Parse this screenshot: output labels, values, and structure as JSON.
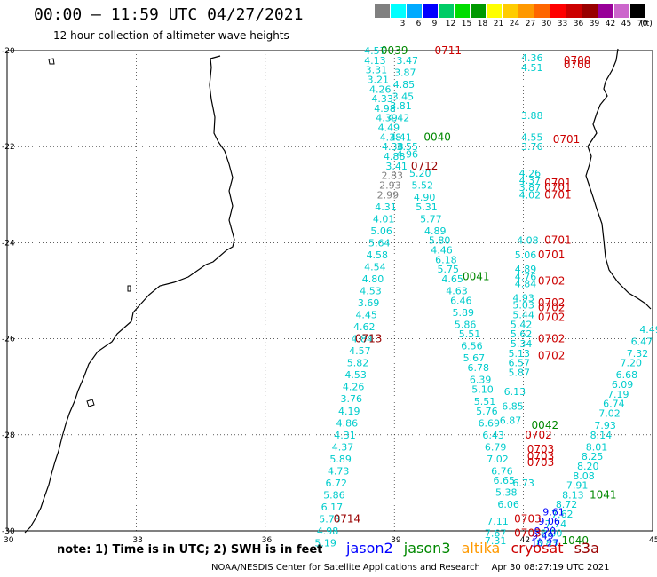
{
  "header": {
    "title": "00:00 – 11:59 UTC 04/27/2021",
    "subtitle": "12 hour collection of altimeter wave heights"
  },
  "color_scale": {
    "unit": "(ft)",
    "swatches": [
      {
        "label": "",
        "color": "#808080"
      },
      {
        "label": "3",
        "color": "#00ffff"
      },
      {
        "label": "6",
        "color": "#00aaff"
      },
      {
        "label": "9",
        "color": "#0000ff"
      },
      {
        "label": "12",
        "color": "#00cc66"
      },
      {
        "label": "15",
        "color": "#00dd00"
      },
      {
        "label": "18",
        "color": "#009900"
      },
      {
        "label": "21",
        "color": "#ffff00"
      },
      {
        "label": "24",
        "color": "#ffcc00"
      },
      {
        "label": "27",
        "color": "#ff9900"
      },
      {
        "label": "30",
        "color": "#ff6600"
      },
      {
        "label": "33",
        "color": "#ff0000"
      },
      {
        "label": "36",
        "color": "#cc0000"
      },
      {
        "label": "39",
        "color": "#990000"
      },
      {
        "label": "42",
        "color": "#990099"
      },
      {
        "label": "45",
        "color": "#cc66cc"
      },
      {
        "label": "70",
        "color": "#000000"
      }
    ]
  },
  "axes": {
    "lat_labels": [
      "-20",
      "-22",
      "-24",
      "-26",
      "-28",
      "-30"
    ],
    "lon_labels": [
      "30",
      "33",
      "36",
      "39",
      "42",
      "45"
    ]
  },
  "tracks": [
    {
      "name": "jason3 track west",
      "color": "#00cccc",
      "points": [
        {
          "lon": 38.55,
          "lat": -20.0,
          "v": "4.57"
        },
        {
          "lon": 38.55,
          "lat": -20.2,
          "v": "4.13"
        },
        {
          "lon": 38.58,
          "lat": -20.4,
          "v": "3.31"
        },
        {
          "lon": 38.62,
          "lat": -20.6,
          "v": "3.21"
        },
        {
          "lon": 38.67,
          "lat": -20.8,
          "v": "4.26"
        },
        {
          "lon": 38.72,
          "lat": -21.0,
          "v": "4.33"
        },
        {
          "lon": 38.78,
          "lat": -21.2,
          "v": "4.98"
        },
        {
          "lon": 38.82,
          "lat": -21.4,
          "v": "4.39"
        },
        {
          "lon": 38.87,
          "lat": -21.6,
          "v": "4.49"
        },
        {
          "lon": 38.91,
          "lat": -21.8,
          "v": "4.38"
        },
        {
          "lon": 38.96,
          "lat": -22.0,
          "v": "4.38"
        },
        {
          "lon": 39.0,
          "lat": -22.2,
          "v": "4.88"
        },
        {
          "lon": 39.05,
          "lat": -22.4,
          "v": "3.41"
        },
        {
          "lon": 38.95,
          "lat": -22.6,
          "v": "2.83",
          "c": "#808080"
        },
        {
          "lon": 38.9,
          "lat": -22.8,
          "v": "2.93",
          "c": "#808080"
        },
        {
          "lon": 38.85,
          "lat": -23.0,
          "v": "2.99",
          "c": "#808080"
        },
        {
          "lon": 38.8,
          "lat": -23.25,
          "v": "4.31"
        },
        {
          "lon": 38.75,
          "lat": -23.5,
          "v": "4.01"
        },
        {
          "lon": 38.7,
          "lat": -23.75,
          "v": "5.06"
        },
        {
          "lon": 38.65,
          "lat": -24.0,
          "v": "5.64"
        },
        {
          "lon": 38.6,
          "lat": -24.25,
          "v": "4.58"
        },
        {
          "lon": 38.55,
          "lat": -24.5,
          "v": "4.54"
        },
        {
          "lon": 38.5,
          "lat": -24.75,
          "v": "4.80"
        },
        {
          "lon": 38.45,
          "lat": -25.0,
          "v": "4.53"
        },
        {
          "lon": 38.4,
          "lat": -25.25,
          "v": "3.69"
        },
        {
          "lon": 38.35,
          "lat": -25.5,
          "v": "4.45"
        },
        {
          "lon": 38.3,
          "lat": -25.75,
          "v": "4.62"
        },
        {
          "lon": 38.25,
          "lat": -26.0,
          "v": "4.84"
        },
        {
          "lon": 38.2,
          "lat": -26.25,
          "v": "4.57"
        },
        {
          "lon": 38.15,
          "lat": -26.5,
          "v": "5.82"
        },
        {
          "lon": 38.1,
          "lat": -26.75,
          "v": "4.53"
        },
        {
          "lon": 38.05,
          "lat": -27.0,
          "v": "4.26"
        },
        {
          "lon": 38.0,
          "lat": -27.25,
          "v": "3.76"
        },
        {
          "lon": 37.95,
          "lat": -27.5,
          "v": "4.19"
        },
        {
          "lon": 37.9,
          "lat": -27.75,
          "v": "4.86"
        },
        {
          "lon": 37.85,
          "lat": -28.0,
          "v": "4.31"
        },
        {
          "lon": 37.8,
          "lat": -28.25,
          "v": "4.37"
        },
        {
          "lon": 37.75,
          "lat": -28.5,
          "v": "5.89"
        },
        {
          "lon": 37.7,
          "lat": -28.75,
          "v": "4.73"
        },
        {
          "lon": 37.65,
          "lat": -29.0,
          "v": "6.72"
        },
        {
          "lon": 37.6,
          "lat": -29.25,
          "v": "5.86"
        },
        {
          "lon": 37.55,
          "lat": -29.5,
          "v": "6.17"
        },
        {
          "lon": 37.5,
          "lat": -29.75,
          "v": "5.73"
        },
        {
          "lon": 37.45,
          "lat": -30.0,
          "v": "4.98"
        },
        {
          "lon": 37.4,
          "lat": -30.25,
          "v": "5.19"
        }
      ]
    },
    {
      "name": "jason3 track east",
      "color": "#00cccc",
      "points": [
        {
          "lon": 39.3,
          "lat": -20.2,
          "v": "3.47"
        },
        {
          "lon": 39.25,
          "lat": -20.45,
          "v": "3.87"
        },
        {
          "lon": 39.22,
          "lat": -20.7,
          "v": "4.85"
        },
        {
          "lon": 39.2,
          "lat": -20.95,
          "v": "3.45"
        },
        {
          "lon": 39.15,
          "lat": -21.15,
          "v": "3.81"
        },
        {
          "lon": 39.1,
          "lat": -21.4,
          "v": "4.42"
        },
        {
          "lon": 39.15,
          "lat": -21.8,
          "v": "4.41"
        },
        {
          "lon": 39.3,
          "lat": -22.0,
          "v": "3.55"
        },
        {
          "lon": 39.3,
          "lat": -22.15,
          "v": "4.96"
        },
        {
          "lon": 39.6,
          "lat": -22.55,
          "v": "5.20"
        },
        {
          "lon": 39.65,
          "lat": -22.8,
          "v": "5.52"
        },
        {
          "lon": 39.7,
          "lat": -23.05,
          "v": "4.90"
        },
        {
          "lon": 39.75,
          "lat": -23.25,
          "v": "5.31"
        },
        {
          "lon": 39.85,
          "lat": -23.5,
          "v": "5.77"
        },
        {
          "lon": 39.95,
          "lat": -23.75,
          "v": "4.89"
        },
        {
          "lon": 40.05,
          "lat": -23.95,
          "v": "5.80"
        },
        {
          "lon": 40.1,
          "lat": -24.15,
          "v": "4.46"
        },
        {
          "lon": 40.2,
          "lat": -24.35,
          "v": "6.18"
        },
        {
          "lon": 40.25,
          "lat": -24.55,
          "v": "5.75"
        },
        {
          "lon": 40.35,
          "lat": -24.75,
          "v": "4.65"
        },
        {
          "lon": 40.45,
          "lat": -25.0,
          "v": "4.63"
        },
        {
          "lon": 40.55,
          "lat": -25.2,
          "v": "6.46"
        },
        {
          "lon": 40.6,
          "lat": -25.45,
          "v": "5.89"
        },
        {
          "lon": 40.65,
          "lat": -25.7,
          "v": "5.86"
        },
        {
          "lon": 40.75,
          "lat": -25.9,
          "v": "5.51"
        },
        {
          "lon": 40.8,
          "lat": -26.15,
          "v": "6.56"
        },
        {
          "lon": 40.85,
          "lat": -26.4,
          "v": "5.67"
        },
        {
          "lon": 40.95,
          "lat": -26.6,
          "v": "6.78"
        },
        {
          "lon": 41.0,
          "lat": -26.85,
          "v": "6.39"
        },
        {
          "lon": 41.05,
          "lat": -27.05,
          "v": "5.10"
        },
        {
          "lon": 41.1,
          "lat": -27.3,
          "v": "5.51"
        },
        {
          "lon": 41.15,
          "lat": -27.5,
          "v": "5.76"
        },
        {
          "lon": 41.2,
          "lat": -27.75,
          "v": "6.69"
        },
        {
          "lon": 41.3,
          "lat": -28.0,
          "v": "6.43"
        },
        {
          "lon": 41.35,
          "lat": -28.25,
          "v": "6.79"
        },
        {
          "lon": 41.4,
          "lat": -28.5,
          "v": "7.02"
        },
        {
          "lon": 41.5,
          "lat": -28.75,
          "v": "6.76"
        },
        {
          "lon": 41.55,
          "lat": -28.95,
          "v": "6.65"
        },
        {
          "lon": 41.6,
          "lat": -29.2,
          "v": "5.38"
        },
        {
          "lon": 41.65,
          "lat": -29.45,
          "v": "6.06"
        }
      ]
    },
    {
      "name": "jason3 track south-east",
      "color": "#00cccc",
      "points": [
        {
          "lon": 44.95,
          "lat": -25.8,
          "v": "4.49"
        },
        {
          "lon": 44.75,
          "lat": -26.05,
          "v": "6.47"
        },
        {
          "lon": 44.65,
          "lat": -26.3,
          "v": "7.32"
        },
        {
          "lon": 44.5,
          "lat": -26.5,
          "v": "7.20"
        },
        {
          "lon": 44.4,
          "lat": -26.75,
          "v": "6.68"
        },
        {
          "lon": 44.3,
          "lat": -26.95,
          "v": "6.09"
        },
        {
          "lon": 44.2,
          "lat": -27.15,
          "v": "7.19"
        },
        {
          "lon": 44.1,
          "lat": -27.35,
          "v": "6.74"
        },
        {
          "lon": 44.0,
          "lat": -27.55,
          "v": "7.02"
        },
        {
          "lon": 43.9,
          "lat": -27.8,
          "v": "7.93"
        },
        {
          "lon": 43.8,
          "lat": -28.0,
          "v": "8.14"
        },
        {
          "lon": 43.7,
          "lat": -28.25,
          "v": "8.01"
        },
        {
          "lon": 43.6,
          "lat": -28.45,
          "v": "8.25"
        },
        {
          "lon": 43.5,
          "lat": -28.65,
          "v": "8.20"
        },
        {
          "lon": 43.4,
          "lat": -28.85,
          "v": "8.08"
        },
        {
          "lon": 43.25,
          "lat": -29.05,
          "v": "7.91"
        },
        {
          "lon": 43.15,
          "lat": -29.25,
          "v": "8.13"
        },
        {
          "lon": 43.0,
          "lat": -29.45,
          "v": "8.72"
        },
        {
          "lon": 42.9,
          "lat": -29.65,
          "v": "7.62"
        },
        {
          "lon": 42.75,
          "lat": -29.85,
          "v": "7.74"
        },
        {
          "lon": 42.65,
          "lat": -30.05,
          "v": "8.00"
        },
        {
          "lon": 42.55,
          "lat": -30.25,
          "v": "8.83"
        }
      ]
    },
    {
      "name": "cryosat track",
      "color": "#00cccc",
      "points": [
        {
          "lon": 42.2,
          "lat": -20.15,
          "v": "4.36"
        },
        {
          "lon": 42.2,
          "lat": -20.35,
          "v": "4.51"
        },
        {
          "lon": 42.2,
          "lat": -21.35,
          "v": "3.88"
        },
        {
          "lon": 42.2,
          "lat": -21.8,
          "v": "4.55"
        },
        {
          "lon": 42.2,
          "lat": -22.0,
          "v": "3.76"
        },
        {
          "lon": 42.15,
          "lat": -22.55,
          "v": "4.26"
        },
        {
          "lon": 42.15,
          "lat": -22.7,
          "v": "4.37"
        },
        {
          "lon": 42.15,
          "lat": -22.85,
          "v": "3.87"
        },
        {
          "lon": 42.15,
          "lat": -23.0,
          "v": "4.02"
        },
        {
          "lon": 42.1,
          "lat": -23.95,
          "v": "4.08"
        },
        {
          "lon": 42.05,
          "lat": -24.25,
          "v": "5.06"
        },
        {
          "lon": 42.05,
          "lat": -24.55,
          "v": "4.89"
        },
        {
          "lon": 42.05,
          "lat": -24.7,
          "v": "4.76"
        },
        {
          "lon": 42.05,
          "lat": -24.85,
          "v": "4.84"
        },
        {
          "lon": 42.0,
          "lat": -25.15,
          "v": "4.93"
        },
        {
          "lon": 42.0,
          "lat": -25.3,
          "v": "5.03"
        },
        {
          "lon": 42.0,
          "lat": -25.5,
          "v": "5.44"
        },
        {
          "lon": 41.95,
          "lat": -25.7,
          "v": "5.42"
        },
        {
          "lon": 41.95,
          "lat": -25.9,
          "v": "5.62"
        },
        {
          "lon": 41.95,
          "lat": -26.1,
          "v": "5.34"
        },
        {
          "lon": 41.9,
          "lat": -26.3,
          "v": "5.13"
        },
        {
          "lon": 41.9,
          "lat": -26.5,
          "v": "6.57"
        },
        {
          "lon": 41.9,
          "lat": -26.7,
          "v": "5.87"
        },
        {
          "lon": 41.8,
          "lat": -27.1,
          "v": "6.13"
        },
        {
          "lon": 41.75,
          "lat": -27.4,
          "v": "6.85"
        },
        {
          "lon": 41.7,
          "lat": -27.7,
          "v": "6.87"
        },
        {
          "lon": 42.0,
          "lat": -29.0,
          "v": "6.73"
        },
        {
          "lon": 41.4,
          "lat": -29.8,
          "v": "7.11"
        },
        {
          "lon": 41.35,
          "lat": -30.05,
          "v": "7.67"
        },
        {
          "lon": 41.35,
          "lat": -30.2,
          "v": "7.31"
        }
      ]
    },
    {
      "name": "jason2 track",
      "color": "#0000ff",
      "points": [
        {
          "lon": 42.7,
          "lat": -29.6,
          "v": "9.61"
        },
        {
          "lon": 42.6,
          "lat": -29.8,
          "v": "9.06"
        },
        {
          "lon": 42.5,
          "lat": -30.0,
          "v": "9.20"
        },
        {
          "lon": 42.45,
          "lat": -30.1,
          "v": "9.49"
        },
        {
          "lon": 42.5,
          "lat": -30.25,
          "v": "10.27"
        }
      ]
    }
  ],
  "time_labels": [
    {
      "lon": 39.0,
      "lat": -20.0,
      "t": "0039",
      "color": "#008800"
    },
    {
      "lon": 40.25,
      "lat": -20.0,
      "t": "0711",
      "color": "#cc0000"
    },
    {
      "lon": 43.25,
      "lat": -20.2,
      "t": "0700",
      "color": "#cc0000"
    },
    {
      "lon": 43.25,
      "lat": -20.3,
      "t": "0700",
      "color": "#cc0000"
    },
    {
      "lon": 40.0,
      "lat": -21.8,
      "t": "0040",
      "color": "#008800"
    },
    {
      "lon": 43.0,
      "lat": -21.85,
      "t": "0701",
      "color": "#cc0000"
    },
    {
      "lon": 39.7,
      "lat": -22.4,
      "t": "0712",
      "color": "#990000"
    },
    {
      "lon": 42.8,
      "lat": -22.75,
      "t": "0701",
      "color": "#cc0000"
    },
    {
      "lon": 42.8,
      "lat": -22.85,
      "t": "0701",
      "color": "#cc0000"
    },
    {
      "lon": 42.8,
      "lat": -23.0,
      "t": "0701",
      "color": "#cc0000"
    },
    {
      "lon": 42.8,
      "lat": -23.95,
      "t": "0701",
      "color": "#cc0000"
    },
    {
      "lon": 42.65,
      "lat": -24.25,
      "t": "0701",
      "color": "#cc0000"
    },
    {
      "lon": 40.9,
      "lat": -24.7,
      "t": "0041",
      "color": "#008800"
    },
    {
      "lon": 42.65,
      "lat": -24.8,
      "t": "0702",
      "color": "#cc0000"
    },
    {
      "lon": 42.65,
      "lat": -25.25,
      "t": "0702",
      "color": "#cc0000"
    },
    {
      "lon": 42.65,
      "lat": -25.35,
      "t": "0702",
      "color": "#cc0000"
    },
    {
      "lon": 42.65,
      "lat": -25.55,
      "t": "0702",
      "color": "#cc0000"
    },
    {
      "lon": 38.4,
      "lat": -26.0,
      "t": "0713",
      "color": "#990000"
    },
    {
      "lon": 42.65,
      "lat": -26.0,
      "t": "0702",
      "color": "#cc0000"
    },
    {
      "lon": 42.65,
      "lat": -26.35,
      "t": "0702",
      "color": "#cc0000"
    },
    {
      "lon": 42.5,
      "lat": -27.8,
      "t": "0042",
      "color": "#008800"
    },
    {
      "lon": 42.35,
      "lat": -28.0,
      "t": "0702",
      "color": "#cc0000"
    },
    {
      "lon": 42.4,
      "lat": -28.3,
      "t": "0703",
      "color": "#cc0000"
    },
    {
      "lon": 42.4,
      "lat": -28.45,
      "t": "0703",
      "color": "#cc0000"
    },
    {
      "lon": 42.4,
      "lat": -28.58,
      "t": "0703",
      "color": "#cc0000"
    },
    {
      "lon": 43.85,
      "lat": -29.25,
      "t": "1041",
      "color": "#008800"
    },
    {
      "lon": 37.9,
      "lat": -29.75,
      "t": "0714",
      "color": "#990000"
    },
    {
      "lon": 42.1,
      "lat": -29.75,
      "t": "0703",
      "color": "#cc0000"
    },
    {
      "lon": 42.1,
      "lat": -30.05,
      "t": "0703",
      "color": "#cc0000"
    },
    {
      "lon": 43.2,
      "lat": -30.2,
      "t": "1040",
      "color": "#008800"
    }
  ],
  "footer": {
    "note": "note:  1) Time is in UTC;  2) SWH is in feet",
    "legend": [
      {
        "label": "jason2",
        "color": "#0000ff"
      },
      {
        "label": "jason3",
        "color": "#008800"
      },
      {
        "label": "altika",
        "color": "#ff9900"
      },
      {
        "label": "cryosat",
        "color": "#cc0000"
      },
      {
        "label": "s3a",
        "color": "#990000"
      }
    ],
    "credit": "NOAA/NESDIS Center for Satellite Applications and Research    Apr 30 08:27:19 UTC 2021"
  }
}
